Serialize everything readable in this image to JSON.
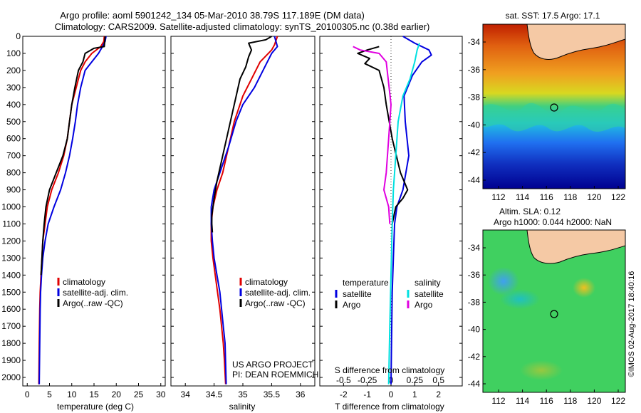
{
  "header": {
    "title_line1": "Argo profile: aoml 5901242_134 05-Mar-2010 38.79S 117.189E (DM data)",
    "title_line2": "Climatology: CARS2009. Satellite-adjusted climatology: synTS_20100305.nc (0.38d earlier)"
  },
  "colors": {
    "climatology": "#e00000",
    "satellite": "#0000e0",
    "argo": "#000000",
    "salinity_satellite": "#00e0e0",
    "salinity_argo": "#e000e0",
    "land": "#f5c9a5"
  },
  "chart_data": [
    {
      "type": "line",
      "xlabel": "temperature (deg C)",
      "ylabel": "",
      "xlim": [
        -1,
        31
      ],
      "ylim": [
        2050,
        0
      ],
      "xticks": [
        0,
        5,
        10,
        15,
        20,
        25,
        30
      ],
      "yticks": [
        0,
        100,
        200,
        300,
        400,
        500,
        600,
        700,
        800,
        900,
        1000,
        1100,
        1200,
        1300,
        1400,
        1500,
        1600,
        1700,
        1800,
        1900,
        2000
      ],
      "legend": [
        "climatology",
        "satellite-adj. clim.",
        "Argo(..raw -QC)"
      ],
      "series": [
        {
          "name": "climatology",
          "color": "#e00000",
          "x": [
            17.3,
            17.2,
            16.5,
            14.5,
            13.0,
            12.0,
            11.0,
            10.0,
            9.5,
            9.0,
            8.2,
            7.0,
            5.5,
            4.5,
            4.0,
            3.5,
            3.3,
            3.1,
            2.9,
            2.8,
            2.7,
            2.6
          ],
          "y": [
            0,
            30,
            60,
            100,
            150,
            200,
            300,
            400,
            500,
            600,
            700,
            800,
            900,
            1000,
            1100,
            1200,
            1300,
            1400,
            1500,
            1600,
            1800,
            2040
          ]
        },
        {
          "name": "satellite-adj. clim.",
          "color": "#0000e0",
          "x": [
            17.7,
            17.5,
            16.9,
            16.0,
            14.5,
            13.0,
            12.0,
            11.3,
            10.8,
            10.2,
            9.5,
            8.6,
            7.5,
            6.0,
            4.7,
            4.0,
            3.5,
            3.2,
            3.0,
            2.9,
            2.8,
            2.7
          ],
          "y": [
            0,
            30,
            60,
            100,
            150,
            200,
            300,
            400,
            500,
            600,
            700,
            800,
            900,
            1000,
            1100,
            1200,
            1300,
            1400,
            1500,
            1600,
            1800,
            2040
          ]
        },
        {
          "name": "Argo(..raw -QC)",
          "color": "#000000",
          "x": [
            17.5,
            17.3,
            15.0,
            13.0,
            12.5,
            11.5,
            10.7,
            10.0,
            9.5,
            9.0,
            8.0,
            6.5,
            5.0,
            4.2,
            3.8,
            3.5,
            3.3,
            3.1
          ],
          "y": [
            0,
            60,
            70,
            100,
            150,
            200,
            300,
            400,
            500,
            600,
            700,
            800,
            900,
            1000,
            1100,
            1200,
            1300,
            1400
          ]
        }
      ]
    },
    {
      "type": "line",
      "xlabel": "salinity",
      "ylabel": "",
      "xlim": [
        33.75,
        36.25
      ],
      "ylim": [
        2050,
        0
      ],
      "xticks": [
        34,
        34.5,
        35,
        35.5,
        36
      ],
      "legend": [
        "climatology",
        "satellite-adj. clim.",
        "Argo(..raw -QC)"
      ],
      "annotations": [
        "US ARGO PROJECT",
        "PI: DEAN ROEMMICH"
      ],
      "series": [
        {
          "name": "climatology",
          "color": "#e00000",
          "x": [
            35.6,
            35.55,
            35.5,
            35.3,
            35.15,
            35.0,
            34.85,
            34.75,
            34.65,
            34.55,
            34.48,
            34.45,
            34.45,
            34.48,
            34.52,
            34.56,
            34.6,
            34.63,
            34.66,
            34.68,
            34.7
          ],
          "y": [
            0,
            50,
            80,
            150,
            250,
            350,
            500,
            650,
            800,
            900,
            1000,
            1100,
            1200,
            1300,
            1400,
            1500,
            1600,
            1700,
            1800,
            1900,
            2040
          ]
        },
        {
          "name": "satellite-adj. clim.",
          "color": "#0000e0",
          "x": [
            35.55,
            35.6,
            35.5,
            35.35,
            35.2,
            35.0,
            34.88,
            34.75,
            34.6,
            34.5,
            34.45,
            34.45,
            34.47,
            34.5,
            34.55,
            34.6,
            34.63,
            34.66,
            34.69,
            34.71
          ],
          "y": [
            0,
            60,
            100,
            200,
            300,
            400,
            500,
            650,
            800,
            900,
            1000,
            1100,
            1200,
            1300,
            1400,
            1500,
            1600,
            1700,
            1800,
            2040
          ]
        },
        {
          "name": "Argo(..raw -QC)",
          "color": "#000000",
          "x": [
            35.5,
            35.4,
            35.1,
            35.15,
            35.1,
            35.05,
            34.95,
            34.85,
            34.75,
            34.65,
            34.55,
            34.5,
            34.48,
            34.46,
            34.46,
            34.47
          ],
          "y": [
            0,
            20,
            40,
            80,
            120,
            180,
            250,
            400,
            550,
            700,
            850,
            950,
            1000,
            1050,
            1100,
            1150
          ]
        }
      ]
    },
    {
      "type": "line",
      "xlabel": "T difference from climatology",
      "secondary_xlabel": "S difference from climatology",
      "xlim": [
        -3,
        3
      ],
      "ylim": [
        2050,
        0
      ],
      "xticks": [
        -2,
        -1,
        0,
        1,
        2
      ],
      "secondary_xticks": [
        "-0.5",
        "-0.25",
        "0",
        "0.25",
        "0.5"
      ],
      "legend_headers": [
        "temperature",
        "salinity"
      ],
      "legend": [
        "satellite",
        "Argo",
        "satellite",
        "Argo"
      ],
      "series": [
        {
          "name": "satellite",
          "group": "temperature",
          "color": "#0000e0",
          "x": [
            0.5,
            1.0,
            1.6,
            1.7,
            1.3,
            0.9,
            0.55,
            0.6,
            0.75,
            0.5,
            0.25,
            0.15,
            0.1,
            0.05,
            0.02,
            0.0
          ],
          "y": [
            0,
            40,
            80,
            110,
            150,
            230,
            350,
            500,
            700,
            900,
            1000,
            1100,
            1300,
            1500,
            1800,
            2040
          ]
        },
        {
          "name": "Argo",
          "group": "temperature",
          "color": "#000000",
          "x": [
            -0.5,
            -1.0,
            -1.4,
            -0.9,
            -1.1,
            -0.5,
            -0.3,
            -0.2,
            0.05,
            0.4,
            0.7,
            0.5,
            0.2,
            0.05
          ],
          "y": [
            60,
            80,
            100,
            130,
            160,
            200,
            300,
            400,
            600,
            800,
            900,
            950,
            1000,
            1100
          ]
        },
        {
          "name": "satellite",
          "group": "salinity",
          "color": "#00e0e0",
          "x": [
            1.2,
            1.1,
            1.0,
            0.8,
            0.5,
            0.3,
            0.2,
            0.1,
            0.05,
            0.0,
            -0.05,
            -0.1
          ],
          "y": [
            40,
            80,
            150,
            250,
            350,
            500,
            700,
            900,
            1100,
            1400,
            1700,
            2040
          ]
        },
        {
          "name": "Argo",
          "group": "salinity",
          "color": "#e000e0",
          "x": [
            -1.6,
            -1.3,
            -0.5,
            -0.2,
            0.0,
            -0.1,
            -0.2,
            -0.3,
            -0.1,
            -0.05
          ],
          "y": [
            60,
            80,
            100,
            150,
            400,
            600,
            800,
            900,
            1000,
            1100
          ]
        }
      ]
    }
  ],
  "maps": {
    "sst": {
      "title": "sat. SST: 17.5 Argo: 17.1",
      "xticks": [
        "112",
        "114",
        "116",
        "118",
        "120",
        "122"
      ],
      "yticks": [
        "-34",
        "-36",
        "-38",
        "-40",
        "-42",
        "-44"
      ]
    },
    "sla": {
      "title_line1": "Altim. SLA: 0.12",
      "title_line2": "Argo h1000: 0.044 h2000: NaN",
      "xticks": [
        "112",
        "114",
        "116",
        "118",
        "120",
        "122"
      ],
      "yticks": [
        "-34",
        "-36",
        "-38",
        "-40",
        "-42",
        "-44"
      ]
    }
  },
  "credit": "©IMOS 02-Aug-2017 18:40:16"
}
